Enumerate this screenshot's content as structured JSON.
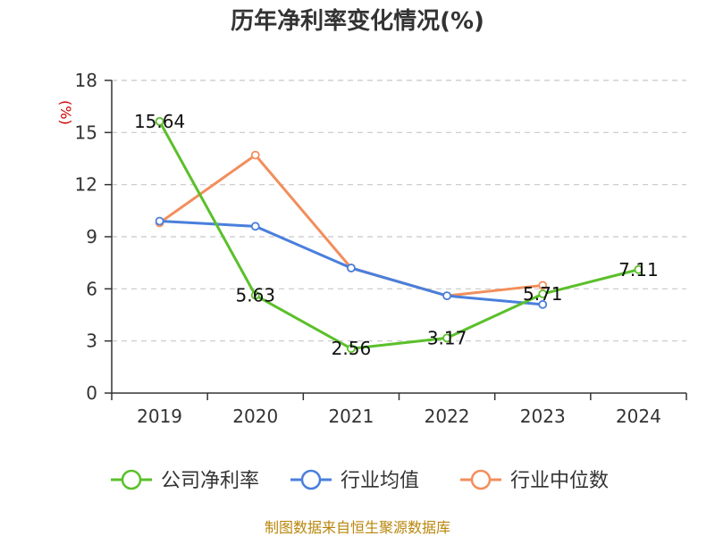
{
  "chart_data": {
    "type": "line",
    "title": "历年净利率变化情况(%)",
    "ylabel": "(%)",
    "xlabel": "",
    "categories": [
      "2019",
      "2020",
      "2021",
      "2022",
      "2023",
      "2024"
    ],
    "ylim": [
      0,
      18
    ],
    "yticks": [
      0,
      3,
      6,
      9,
      12,
      15,
      18
    ],
    "grid": true,
    "legend_position": "bottom",
    "series": [
      {
        "name": "公司净利率",
        "color": "#5bc02a",
        "values": [
          15.64,
          5.63,
          2.56,
          3.17,
          5.71,
          7.11
        ],
        "labels": [
          "15.64",
          "5.63",
          "2.56",
          "3.17",
          "5.71",
          "7.11"
        ]
      },
      {
        "name": "行业均值",
        "color": "#4a7fdc",
        "values": [
          9.9,
          9.6,
          7.2,
          5.6,
          5.1,
          null
        ]
      },
      {
        "name": "行业中位数",
        "color": "#f28e5c",
        "values": [
          9.8,
          13.7,
          7.2,
          5.6,
          6.2,
          null
        ]
      }
    ]
  },
  "source": "制图数据来自恒生聚源数据库"
}
